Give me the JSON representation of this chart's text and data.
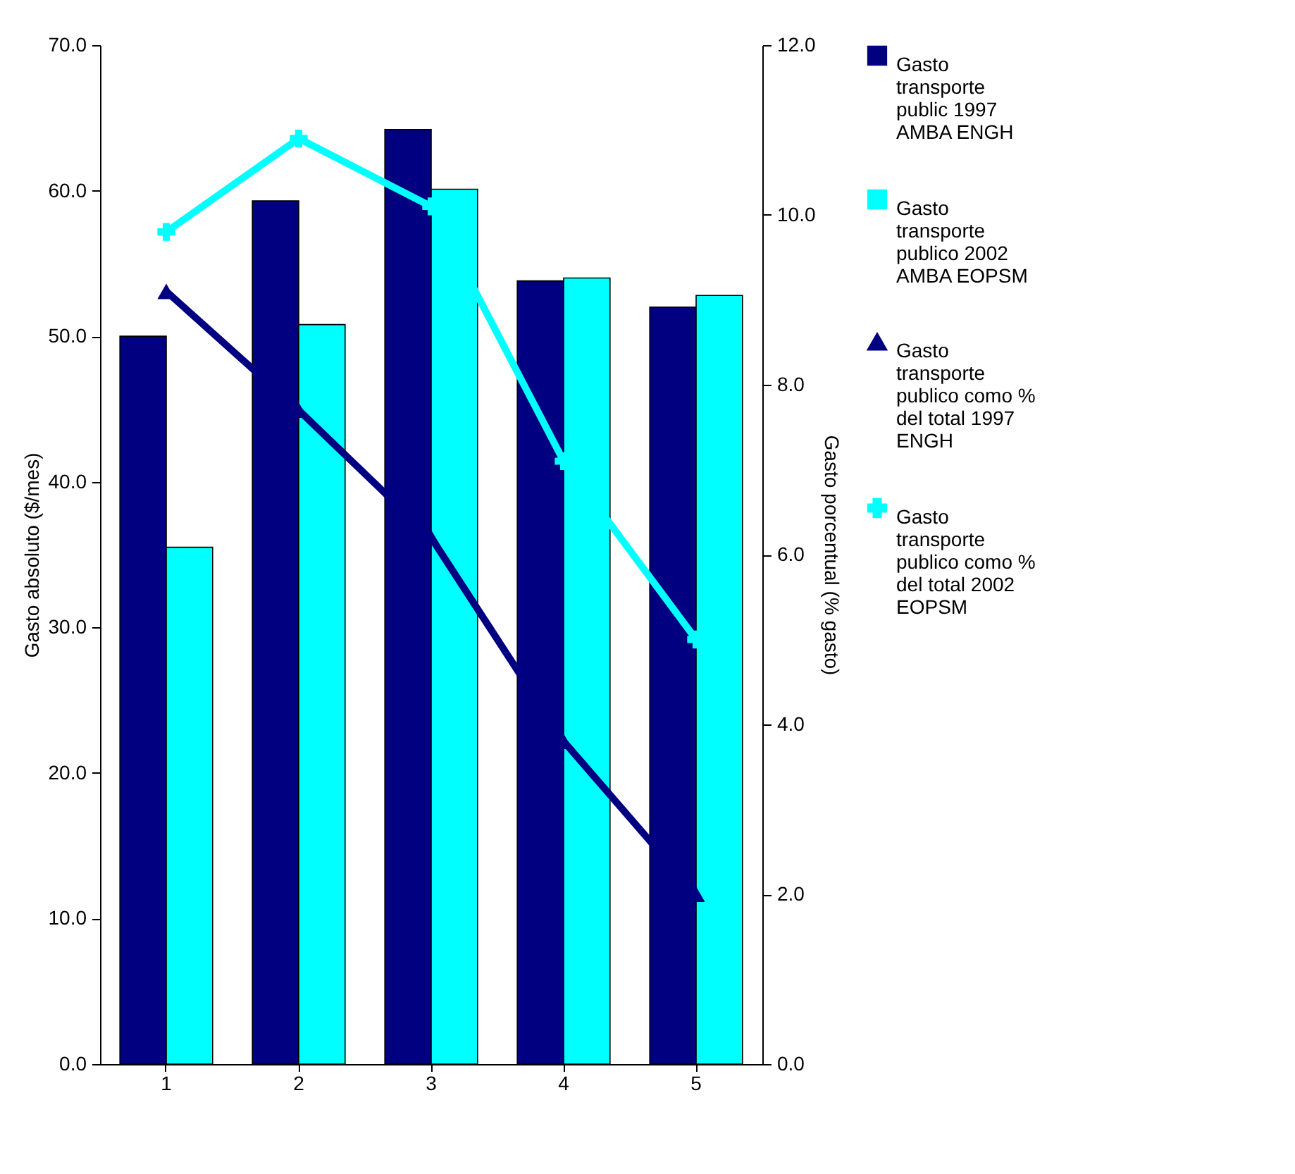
{
  "chart_data": {
    "type": "bar",
    "categories": [
      "1",
      "2",
      "3",
      "4",
      "5"
    ],
    "ylabel": "Gasto absoluto ($/mes)",
    "y2label": "Gasto porcentual (% gasto)",
    "ylim": [
      0,
      70
    ],
    "yticks": [
      {
        "value": 0,
        "label": "0.0"
      },
      {
        "value": 10,
        "label": "10.0"
      },
      {
        "value": 20,
        "label": "20.0"
      },
      {
        "value": 30,
        "label": "30.0"
      },
      {
        "value": 40,
        "label": "40.0"
      },
      {
        "value": 50,
        "label": "50.0"
      },
      {
        "value": 60,
        "label": "60.0"
      },
      {
        "value": 70,
        "label": "70.0"
      }
    ],
    "y2lim": [
      0,
      12
    ],
    "y2ticks": [
      {
        "value": 0,
        "label": "0.0"
      },
      {
        "value": 2,
        "label": "2.0"
      },
      {
        "value": 4,
        "label": "4.0"
      },
      {
        "value": 6,
        "label": "6.0"
      },
      {
        "value": 8,
        "label": "8.0"
      },
      {
        "value": 10,
        "label": "10.0"
      },
      {
        "value": 12,
        "label": "12.0"
      }
    ],
    "grid": false,
    "legend": "right",
    "series": [
      {
        "name": "Gasto transporte public 1997 AMBA ENGH",
        "color": "#000080",
        "values": [
          50.0,
          59.3,
          64.2,
          53.8,
          52.0
        ]
      },
      {
        "name": "Gasto transporte publico 2002 AMBA EOPSM",
        "color": "#00ffff",
        "values": [
          35.5,
          50.8,
          60.1,
          54.0,
          52.8
        ]
      },
      {
        "name": "Gasto transporte publico como % del total 1997 ENGH",
        "type": "line",
        "axis": "y2",
        "marker": "triangle",
        "color": "#000080",
        "values": [
          9.1,
          7.7,
          6.2,
          3.8,
          2.0
        ]
      },
      {
        "name": "Gasto transporte publico como % del total 2002 EOPSM",
        "type": "line",
        "axis": "y2",
        "marker": "cross",
        "color": "#00ffff",
        "values": [
          9.8,
          10.9,
          10.1,
          7.1,
          5.0
        ]
      }
    ]
  }
}
